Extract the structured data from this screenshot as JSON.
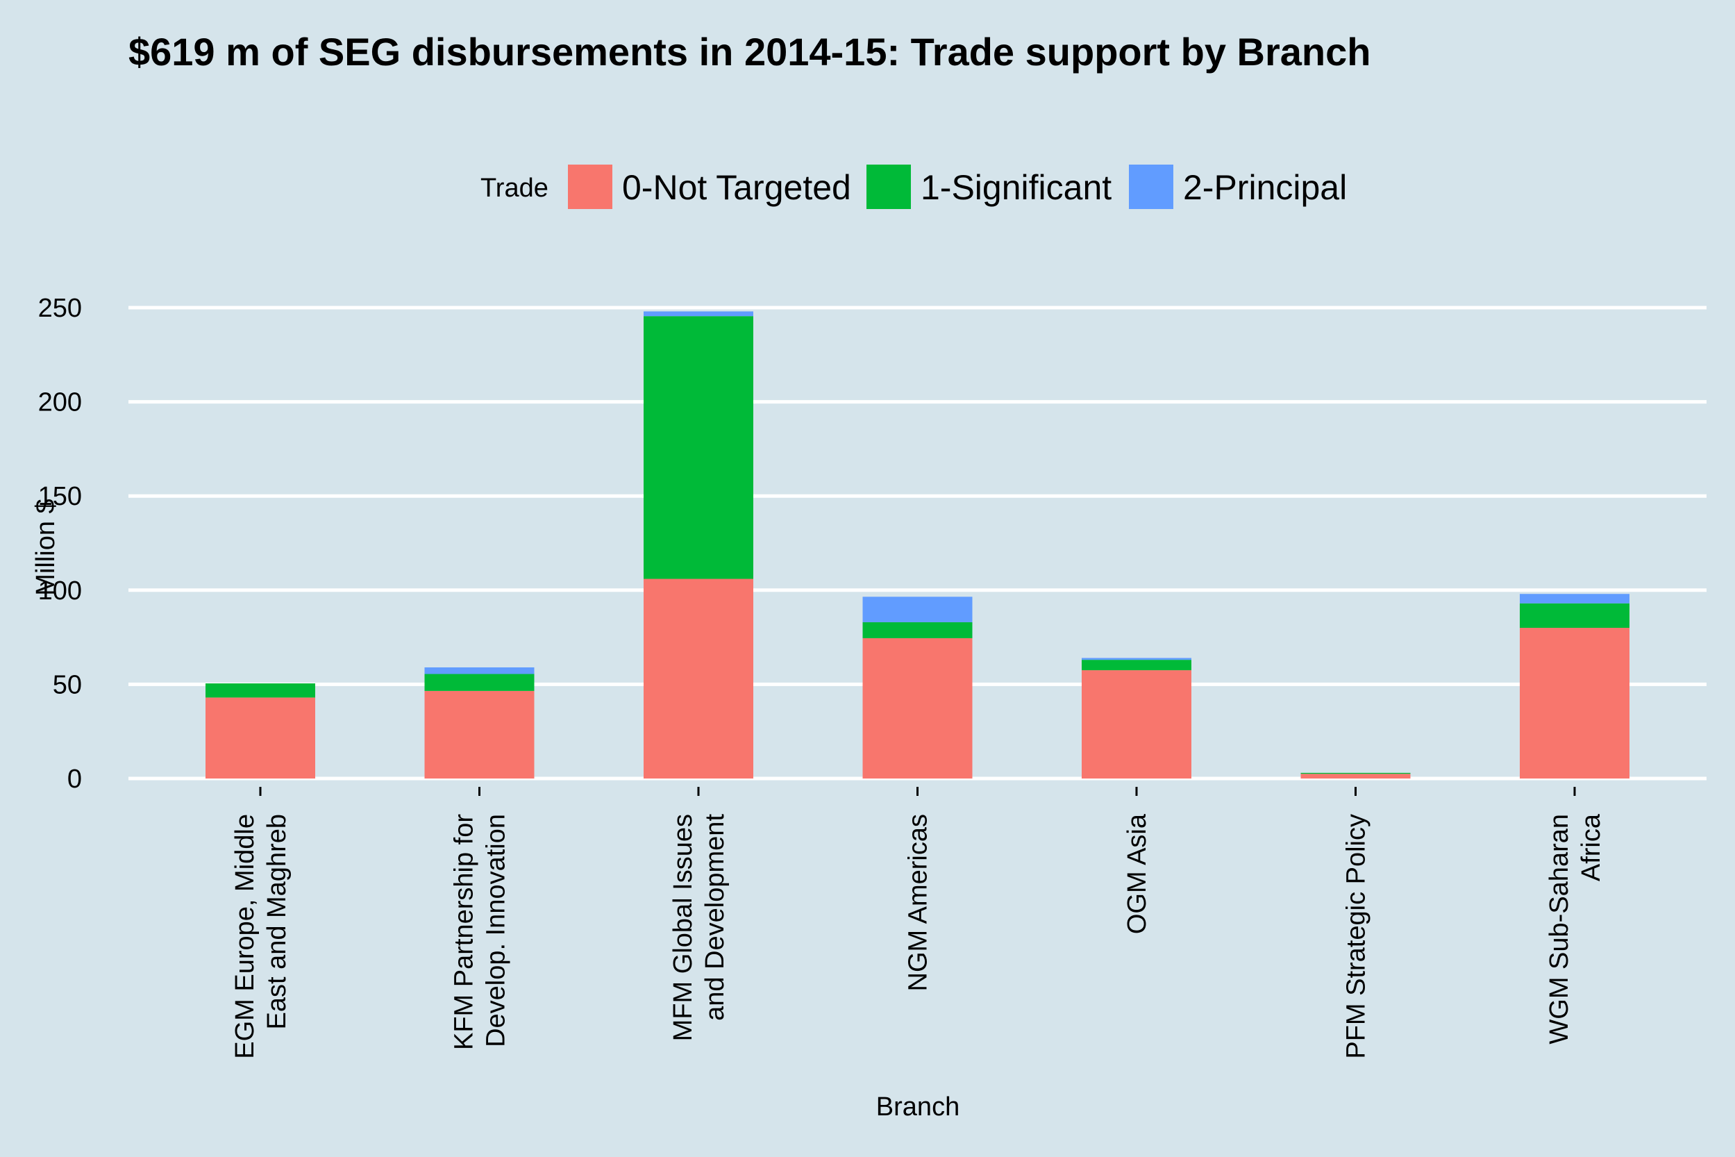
{
  "chart_data": {
    "type": "bar",
    "stacked": true,
    "title": "$619 m of SEG disbursements in 2014-15: Trade support by Branch",
    "xlabel": "Branch",
    "ylabel": "Million $",
    "ylim": [
      0,
      265
    ],
    "yticks": [
      0,
      50,
      100,
      150,
      200,
      250
    ],
    "grid": true,
    "legend": {
      "title": "Trade",
      "position": "top"
    },
    "categories": [
      [
        "EGM Europe, Middle",
        "East and Maghreb"
      ],
      [
        "KFM Partnership for",
        "Develop. Innovation"
      ],
      [
        "MFM Global Issues",
        "and Development"
      ],
      [
        "NGM Americas"
      ],
      [
        "OGM Asia"
      ],
      [
        "PFM Strategic Policy"
      ],
      [
        "WGM Sub-Saharan",
        "Africa"
      ]
    ],
    "series": [
      {
        "name": "0-Not Targeted",
        "color": "#f8766d",
        "values": [
          43,
          46.5,
          106,
          74.5,
          57.5,
          2.5,
          80
        ]
      },
      {
        "name": "1-Significant",
        "color": "#00ba38",
        "values": [
          7.5,
          9,
          139.5,
          8.5,
          5.5,
          0.5,
          13
        ]
      },
      {
        "name": "2-Principal",
        "color": "#619cff",
        "values": [
          0,
          3.5,
          2.5,
          13.5,
          1,
          0,
          5
        ]
      }
    ]
  }
}
